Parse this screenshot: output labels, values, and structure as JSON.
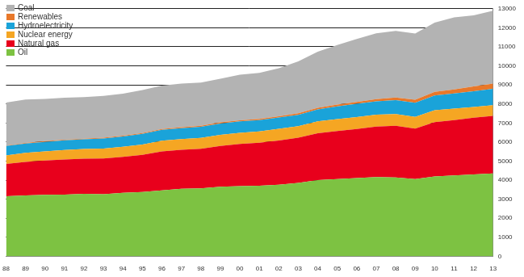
{
  "chart_data": {
    "type": "area",
    "stacked": true,
    "grid": true,
    "legend": "upper left",
    "categories": [
      "88",
      "89",
      "90",
      "91",
      "92",
      "93",
      "94",
      "95",
      "96",
      "97",
      "98",
      "99",
      "00",
      "01",
      "02",
      "03",
      "04",
      "05",
      "06",
      "07",
      "08",
      "09",
      "10",
      "11",
      "12",
      "13"
    ],
    "ylim": [
      0,
      13000
    ],
    "yticks": [
      0,
      1000,
      2000,
      3000,
      4000,
      5000,
      6000,
      7000,
      8000,
      9000,
      10000,
      11000,
      12000,
      13000
    ],
    "series": [
      {
        "name": "Oil",
        "color": "#7dc242",
        "values": [
          3150,
          3200,
          3230,
          3240,
          3280,
          3260,
          3330,
          3380,
          3460,
          3550,
          3570,
          3650,
          3680,
          3710,
          3760,
          3850,
          4000,
          4060,
          4110,
          4160,
          4140,
          4060,
          4190,
          4250,
          4300,
          4350
        ]
      },
      {
        "name": "Natural gas",
        "color": "#e8001c",
        "values": [
          1700,
          1760,
          1800,
          1840,
          1850,
          1880,
          1890,
          1950,
          2050,
          2040,
          2080,
          2140,
          2220,
          2250,
          2320,
          2380,
          2460,
          2520,
          2570,
          2650,
          2710,
          2650,
          2850,
          2900,
          2980,
          3020
        ]
      },
      {
        "name": "Nuclear energy",
        "color": "#f5a623",
        "values": [
          450,
          470,
          480,
          500,
          500,
          520,
          530,
          540,
          560,
          560,
          570,
          590,
          585,
          600,
          610,
          600,
          625,
          627,
          635,
          622,
          620,
          614,
          626,
          600,
          560,
          563
        ]
      },
      {
        "name": "Hydroelectricity",
        "color": "#1aa3d9",
        "values": [
          490,
          495,
          500,
          510,
          510,
          530,
          540,
          560,
          570,
          580,
          585,
          595,
          600,
          590,
          595,
          600,
          630,
          660,
          690,
          700,
          730,
          740,
          780,
          795,
          830,
          856
        ]
      },
      {
        "name": "Renewables",
        "color": "#e8782a",
        "values": [
          30,
          32,
          35,
          37,
          38,
          40,
          42,
          45,
          47,
          50,
          53,
          56,
          60,
          64,
          70,
          76,
          86,
          95,
          105,
          120,
          140,
          160,
          190,
          220,
          250,
          279
        ]
      },
      {
        "name": "Coal",
        "color": "#b3b3b3",
        "values": [
          2250,
          2270,
          2220,
          2200,
          2180,
          2190,
          2210,
          2250,
          2280,
          2290,
          2260,
          2290,
          2390,
          2420,
          2520,
          2730,
          2940,
          3130,
          3300,
          3460,
          3500,
          3470,
          3630,
          3780,
          3730,
          3830
        ]
      }
    ]
  }
}
